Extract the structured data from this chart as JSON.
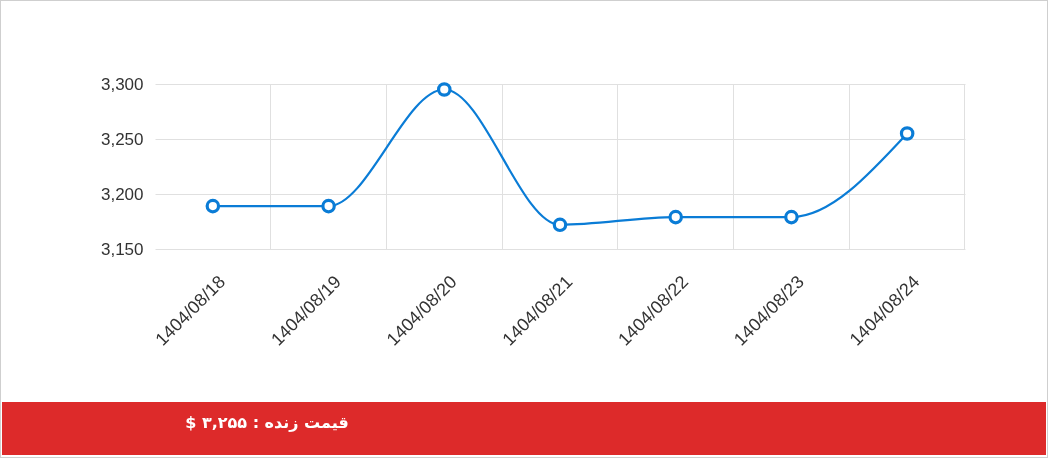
{
  "chart_data": {
    "type": "line",
    "categories": [
      "1404/08/18",
      "1404/08/19",
      "1404/08/20",
      "1404/08/21",
      "1404/08/22",
      "1404/08/23",
      "1404/08/24"
    ],
    "series": [
      {
        "color": "#0a7cd6",
        "values": [
          3189,
          3189,
          3295,
          3172,
          3179,
          3179,
          3255
        ]
      }
    ],
    "ylim": [
      3150,
      3300
    ],
    "yticks": [
      {
        "value": 3150,
        "label": "3,150"
      },
      {
        "value": 3200,
        "label": "3,200"
      },
      {
        "value": 3250,
        "label": "3,250"
      },
      {
        "value": 3300,
        "label": "3,300"
      }
    ],
    "grid": true,
    "marker": "circle",
    "line_style": "solid",
    "annotations": [
      "قیمت زنده : ۳,۲۵۵ $"
    ]
  }
}
